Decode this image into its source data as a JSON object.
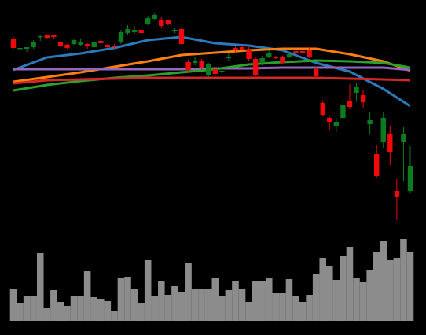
{
  "chart_data": {
    "type": "candlestick",
    "up_color": "#0b7d1e",
    "down_color": "#f00a0a",
    "ylim": [
      10,
      300
    ],
    "open": [
      251,
      238,
      238,
      240,
      253,
      255,
      255,
      246,
      243,
      244,
      243,
      244,
      240,
      248,
      243,
      242,
      246,
      258,
      259,
      262,
      269,
      276,
      275,
      274,
      260,
      263,
      221,
      220,
      222,
      204,
      212,
      208,
      226,
      239,
      240,
      236,
      225,
      220,
      228,
      228,
      228,
      228,
      235,
      235,
      237,
      212,
      169,
      150,
      140,
      150,
      171,
      182,
      179,
      142,
      104,
      119,
      130,
      57,
      120,
      57
    ],
    "high": [
      253,
      241,
      240,
      249,
      256,
      256,
      256,
      247,
      244,
      250,
      250,
      245,
      247,
      250,
      244,
      244,
      262,
      268,
      267,
      263,
      280,
      283,
      278,
      275,
      265,
      264,
      224,
      228,
      225,
      220,
      215,
      213,
      232,
      242,
      241,
      240,
      228,
      229,
      236,
      229,
      229,
      234,
      236,
      236,
      240,
      215,
      171,
      153,
      150,
      171,
      193,
      195,
      185,
      157,
      115,
      157,
      140,
      72,
      138,
      114
    ],
    "low": [
      238,
      237,
      234,
      238,
      248,
      251,
      250,
      240,
      238,
      243,
      241,
      238,
      239,
      244,
      239,
      238,
      244,
      255,
      257,
      257,
      268,
      274,
      264,
      268,
      258,
      243,
      209,
      217,
      211,
      202,
      203,
      204,
      223,
      234,
      236,
      223,
      203,
      217,
      226,
      225,
      219,
      226,
      231,
      232,
      226,
      201,
      152,
      135,
      132,
      148,
      162,
      172,
      163,
      130,
      74,
      112,
      90,
      20,
      70,
      55
    ],
    "close": [
      239,
      239,
      240,
      247,
      254,
      252,
      253,
      241,
      239,
      249,
      247,
      241,
      246,
      245,
      240,
      240,
      259,
      263,
      262,
      258,
      277,
      281,
      267,
      269,
      262,
      244,
      211,
      223,
      214,
      218,
      206,
      210,
      228,
      236,
      237,
      225,
      205,
      226,
      232,
      226,
      220,
      231,
      232,
      233,
      228,
      203,
      154,
      145,
      145,
      166,
      164,
      190,
      170,
      148,
      76,
      150,
      107,
      50,
      129,
      89
    ],
    "moving_averages": [
      {
        "color": "#2b7bba",
        "x": [
          0,
          5,
          10,
          15,
          20,
          25,
          30,
          35,
          40,
          45,
          50,
          55,
          59
        ],
        "values": [
          211,
          227,
          232,
          239,
          249,
          253,
          245,
          242,
          236,
          220,
          209,
          187,
          165
        ]
      },
      {
        "color": "#ff7f0e",
        "x": [
          0,
          5,
          10,
          15,
          20,
          25,
          30,
          35,
          40,
          45,
          50,
          55,
          59
        ],
        "values": [
          196,
          202,
          208,
          215,
          222,
          230,
          233,
          236,
          238,
          238,
          231,
          222,
          210
        ]
      },
      {
        "color": "#9467bd",
        "x": [
          0,
          5,
          10,
          15,
          20,
          25,
          30,
          35,
          40,
          45,
          50,
          55,
          59
        ],
        "values": [
          212,
          212,
          212,
          212,
          212,
          212,
          213,
          213,
          214,
          214,
          214,
          214,
          211
        ]
      },
      {
        "color": "#2ca02c",
        "x": [
          0,
          5,
          10,
          15,
          20,
          25,
          30,
          35,
          40,
          45,
          50,
          55,
          59
        ],
        "values": [
          185,
          192,
          197,
          201,
          204,
          208,
          212,
          218,
          221,
          223,
          222,
          220,
          214
        ]
      },
      {
        "color": "#d62728",
        "x": [
          0,
          5,
          10,
          15,
          20,
          25,
          30,
          35,
          40,
          45,
          50,
          55,
          59
        ],
        "values": [
          194,
          198,
          199,
          200,
          201,
          201,
          201,
          201,
          201,
          201,
          200,
          199,
          198
        ]
      }
    ],
    "volume": {
      "color": "#8c8c8c",
      "ylim": [
        0,
        110
      ],
      "values": [
        41,
        23,
        32,
        32,
        86,
        16,
        39,
        24,
        19,
        32,
        31,
        64,
        30,
        28,
        25,
        13,
        54,
        56,
        41,
        23,
        77,
        32,
        51,
        33,
        44,
        37,
        73,
        41,
        41,
        40,
        54,
        32,
        39,
        51,
        41,
        24,
        51,
        51,
        55,
        36,
        35,
        53,
        32,
        24,
        33,
        59,
        80,
        70,
        52,
        83,
        94,
        55,
        49,
        65,
        87,
        102,
        77,
        80,
        104,
        87
      ]
    }
  }
}
